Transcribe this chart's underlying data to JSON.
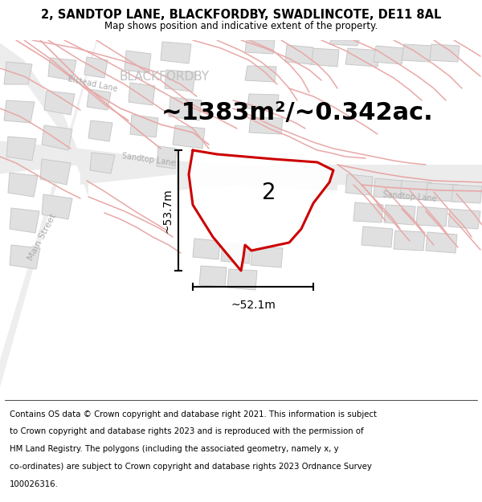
{
  "title": "2, SANDTOP LANE, BLACKFORDBY, SWADLINCOTE, DE11 8AL",
  "subtitle": "Map shows position and indicative extent of the property.",
  "area_text": "~1383m²/~0.342ac.",
  "plot_number": "2",
  "dim_h": "~53.7m",
  "dim_w": "~52.1m",
  "plot_color": "#cc0000",
  "map_bg": "#f7f7f7",
  "road_color": "#e8a8a8",
  "building_color": "#e0e0e0",
  "building_edge": "#c8c8c8",
  "street_label_color": "#aaaaaa",
  "place_label_color": "#bbbbbb",
  "title_fontsize": 10.5,
  "subtitle_fontsize": 8.5,
  "footer_fontsize": 7.5,
  "area_fontsize": 22,
  "plot_num_fontsize": 20,
  "dim_fontsize": 10,
  "footer_lines": [
    "Contains OS data © Crown copyright and database right 2021. This information is subject",
    "to Crown copyright and database rights 2023 and is reproduced with the permission of",
    "HM Land Registry. The polygons (including the associated geometry, namely x, y",
    "co-ordinates) are subject to Crown copyright and database rights 2023 Ordnance Survey",
    "100026316."
  ]
}
